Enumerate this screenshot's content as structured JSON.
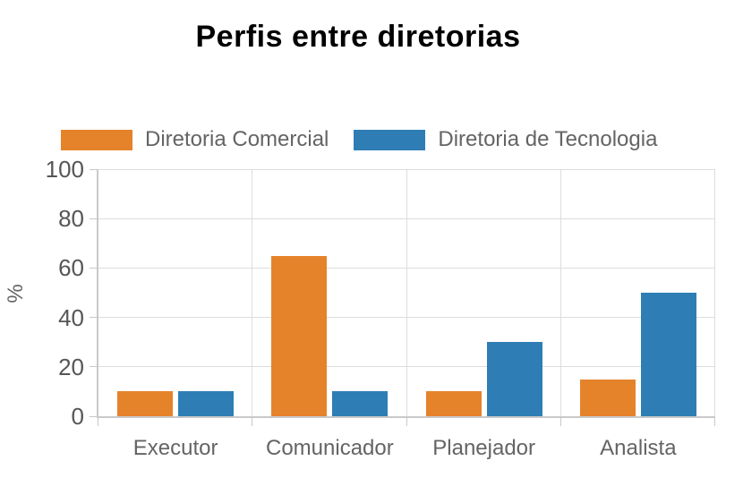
{
  "chart_data": {
    "type": "bar",
    "title": "Perfis entre diretorias",
    "categories": [
      "Executor",
      "Comunicador",
      "Planejador",
      "Analista"
    ],
    "series": [
      {
        "name": "Diretoria Comercial",
        "color": "#E5832B",
        "values": [
          10,
          65,
          10,
          15
        ]
      },
      {
        "name": "Diretoria de Tecnologia",
        "color": "#2E7EB5",
        "values": [
          10,
          10,
          30,
          50
        ]
      }
    ],
    "xlabel": "",
    "ylabel": "%",
    "ylim": [
      0,
      100
    ],
    "y_ticks": [
      0,
      20,
      40,
      60,
      80,
      100
    ],
    "grid": true,
    "legend_position": "top-left"
  },
  "colors": {
    "background": "#FFFFFF",
    "grid": "#DDDDDD",
    "axis": "#C9C9C9",
    "tick_text": "#565656",
    "label_text": "#646464",
    "title_text": "#000000"
  }
}
